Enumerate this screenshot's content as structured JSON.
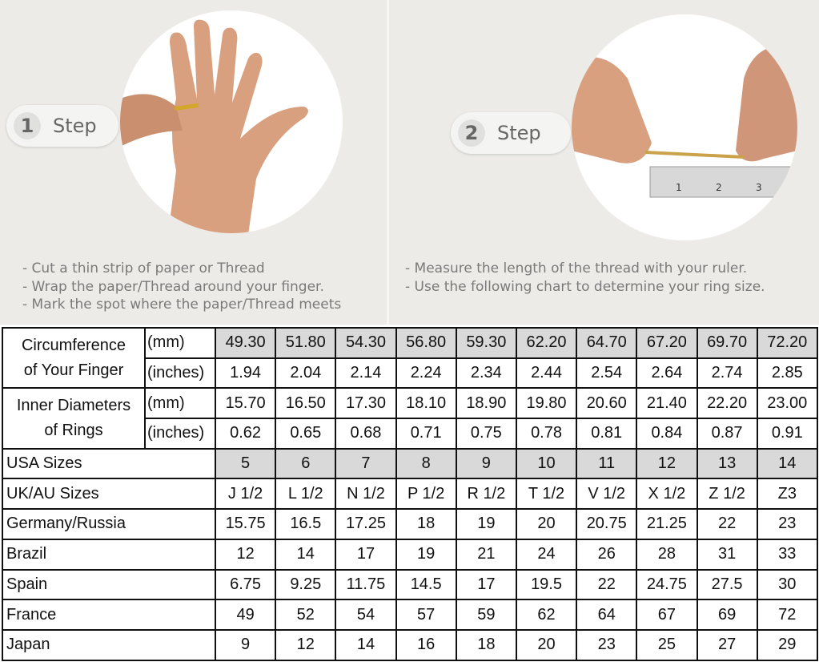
{
  "step1": {
    "number": "1",
    "label": "Step",
    "instructions": [
      "- Cut a thin strip of paper or Thread",
      "- Wrap the paper/Thread around your finger.",
      "- Mark the spot where the paper/Thread meets"
    ]
  },
  "step2": {
    "number": "2",
    "label": "Step",
    "instructions": [
      "- Measure the length of the thread with your ruler.",
      "- Use the following chart to determine your ring size."
    ]
  },
  "ruler_marks": [
    "1",
    "2",
    "3"
  ],
  "table": {
    "circumference": {
      "label_line1": "Circumference",
      "label_line2": "of Your Finger",
      "mm_unit": "(mm)",
      "mm": [
        "49.30",
        "51.80",
        "54.30",
        "56.80",
        "59.30",
        "62.20",
        "64.70",
        "67.20",
        "69.70",
        "72.20"
      ],
      "in_unit": "(inches)",
      "in": [
        "1.94",
        "2.04",
        "2.14",
        "2.24",
        "2.34",
        "2.44",
        "2.54",
        "2.64",
        "2.74",
        "2.85"
      ]
    },
    "inner_diameter": {
      "label_line1": "Inner Diameters",
      "label_line2": "of Rings",
      "mm_unit": "(mm)",
      "mm": [
        "15.70",
        "16.50",
        "17.30",
        "18.10",
        "18.90",
        "19.80",
        "20.60",
        "21.40",
        "22.20",
        "23.00"
      ],
      "in_unit": "(inches)",
      "in": [
        "0.62",
        "0.65",
        "0.68",
        "0.71",
        "0.75",
        "0.78",
        "0.81",
        "0.84",
        "0.87",
        "0.91"
      ]
    },
    "rows": [
      {
        "label": "USA Sizes",
        "values": [
          "5",
          "6",
          "7",
          "8",
          "9",
          "10",
          "11",
          "12",
          "13",
          "14"
        ],
        "highlight": true
      },
      {
        "label": "UK/AU Sizes",
        "values": [
          "J 1/2",
          "L 1/2",
          "N 1/2",
          "P 1/2",
          "R 1/2",
          "T 1/2",
          "V 1/2",
          "X 1/2",
          "Z 1/2",
          "Z3"
        ]
      },
      {
        "label": "Germany/Russia",
        "values": [
          "15.75",
          "16.5",
          "17.25",
          "18",
          "19",
          "20",
          "20.75",
          "21.25",
          "22",
          "23"
        ]
      },
      {
        "label": "Brazil",
        "values": [
          "12",
          "14",
          "17",
          "19",
          "21",
          "24",
          "26",
          "28",
          "31",
          "33"
        ]
      },
      {
        "label": "Spain",
        "values": [
          "6.75",
          "9.25",
          "11.75",
          "14.5",
          "17",
          "19.5",
          "22",
          "24.75",
          "27.5",
          "30"
        ]
      },
      {
        "label": "France",
        "values": [
          "49",
          "52",
          "54",
          "57",
          "59",
          "62",
          "64",
          "67",
          "69",
          "72"
        ]
      },
      {
        "label": "Japan",
        "values": [
          "9",
          "12",
          "14",
          "16",
          "18",
          "20",
          "23",
          "25",
          "27",
          "29"
        ]
      }
    ]
  },
  "colors": {
    "background": "#ecebe7",
    "highlight_cell": "#d9d9d9",
    "text": "#7a7a7a",
    "skin": "#d9a07f"
  }
}
